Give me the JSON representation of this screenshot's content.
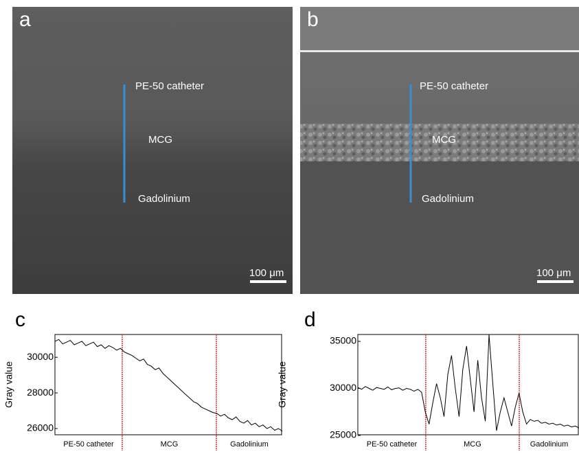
{
  "panels": [
    {
      "label": "a",
      "annotations": [
        "PE-50 catheter",
        "MCG",
        "Gadolinium"
      ],
      "scale_bar": "100 μm"
    },
    {
      "label": "b",
      "annotations": [
        "PE-50 catheter",
        "MCG",
        "Gadolinium"
      ],
      "scale_bar": "100 μm"
    }
  ],
  "chart_data": [
    {
      "type": "line",
      "label": "c",
      "y_label": "Gray value",
      "color": "#000000",
      "boundary_color": "#e03030",
      "regions": [
        "PE-50 catheter",
        "MCG",
        "Gadolinium"
      ],
      "ylim": [
        25650,
        31280
      ],
      "yticks": [
        26000,
        28000,
        30000
      ],
      "values": [
        30900,
        31000,
        30750,
        30850,
        30950,
        30700,
        30800,
        30900,
        30650,
        30750,
        30850,
        30600,
        30700,
        30500,
        30650,
        30550,
        30400,
        30500,
        30300,
        30200,
        30100,
        29950,
        29800,
        29900,
        29600,
        29500,
        29300,
        29400,
        29100,
        28900,
        28700,
        28500,
        28300,
        28100,
        27900,
        27700,
        27500,
        27400,
        27200,
        27100,
        27000,
        26900,
        26850,
        26700,
        26800,
        26600,
        26500,
        26650,
        26400,
        26300,
        26450,
        26200,
        26300,
        26100,
        26200,
        26000,
        26100,
        25900,
        26000,
        25850
      ]
    },
    {
      "type": "line",
      "label": "d",
      "y_label": "Gray value",
      "color": "#000000",
      "boundary_color": "#e03030",
      "regions": [
        "PE-50 catheter",
        "MCG",
        "Gadolinium"
      ],
      "ylim": [
        25070,
        35730
      ],
      "yticks": [
        25000,
        30000,
        35000
      ],
      "values": [
        30100,
        29900,
        30200,
        30000,
        29800,
        30100,
        30000,
        29900,
        30150,
        29850,
        30000,
        30050,
        29800,
        30000,
        29900,
        29700,
        29900,
        29600,
        27500,
        26200,
        28500,
        30500,
        29000,
        27000,
        31500,
        33500,
        30000,
        27000,
        32000,
        34500,
        31000,
        27500,
        33000,
        29000,
        26500,
        35700,
        30500,
        25500,
        27500,
        29000,
        27500,
        26000,
        28000,
        29500,
        27500,
        26200,
        26700,
        26500,
        26600,
        26300,
        26400,
        26200,
        26300,
        26100,
        26200,
        26000,
        26100,
        25900,
        26000,
        25800
      ]
    }
  ]
}
